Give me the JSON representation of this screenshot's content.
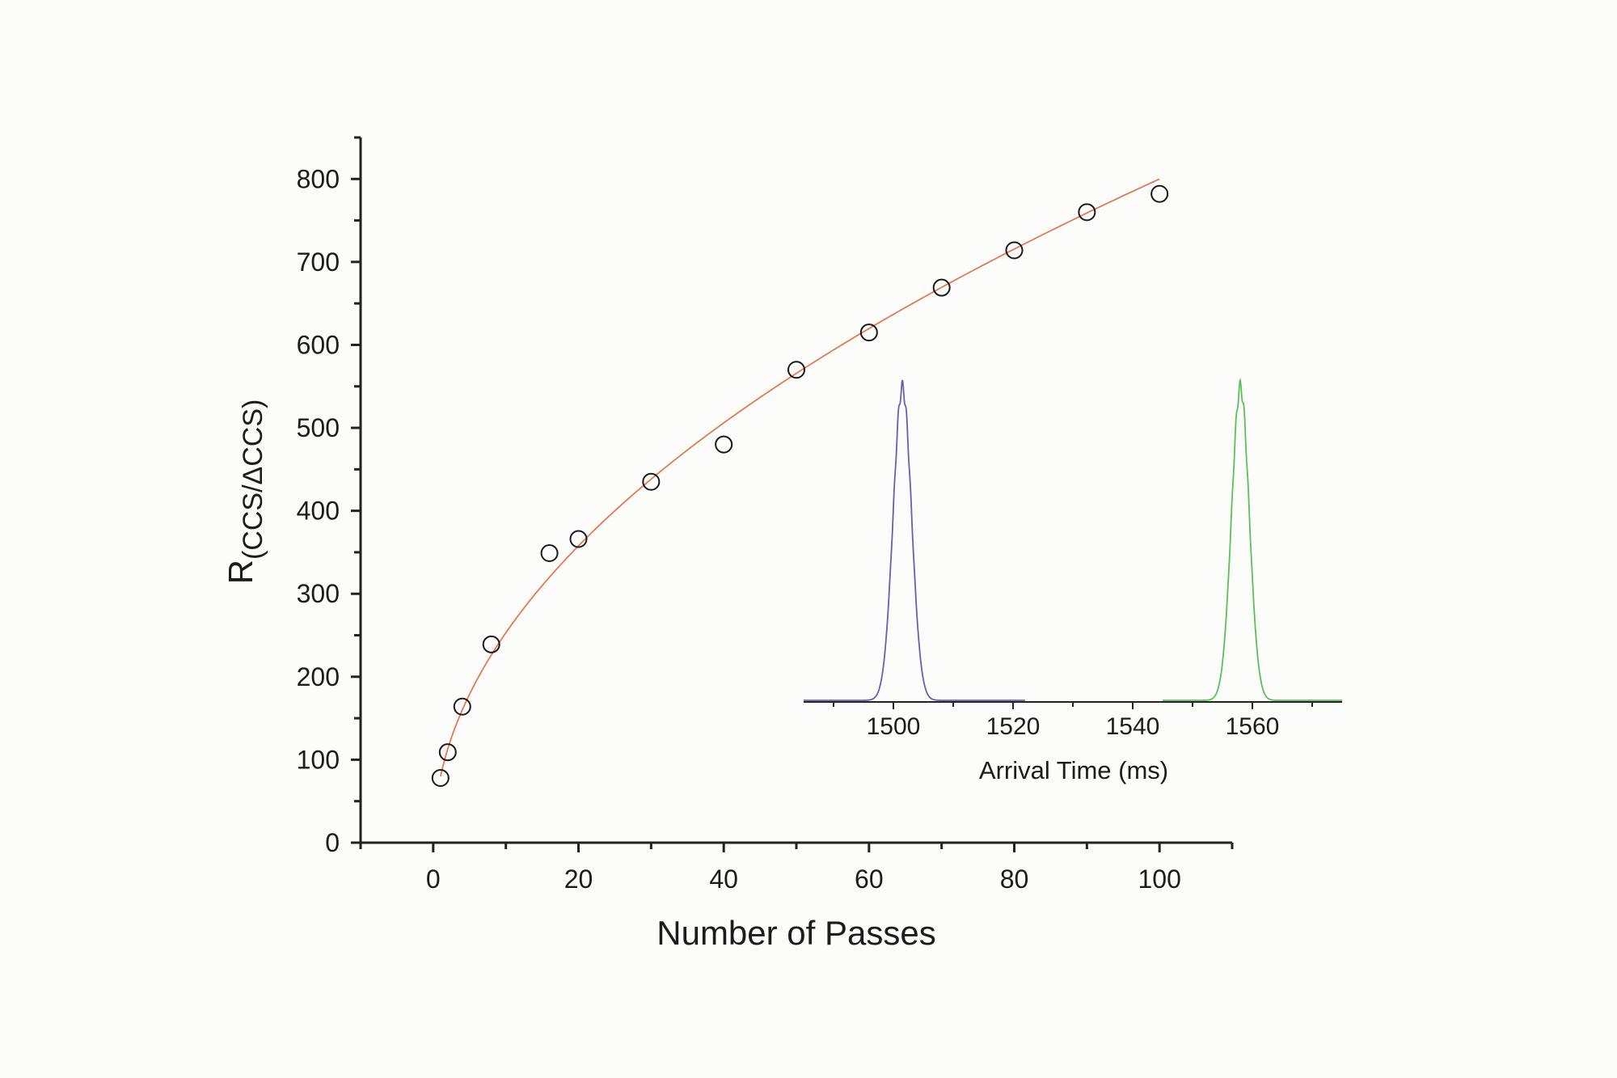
{
  "chart_data": {
    "type": "scatter",
    "xlabel": "Number of Passes",
    "ylabel_main": "R",
    "ylabel_subscript": "(CCS/ΔCCS)",
    "xlim": [
      -10,
      110
    ],
    "ylim": [
      0,
      850
    ],
    "x_ticks": [
      0,
      20,
      40,
      60,
      80,
      100
    ],
    "x_tick_labels": [
      "0",
      "20",
      "40",
      "60",
      "80",
      "100"
    ],
    "y_ticks": [
      0,
      100,
      200,
      300,
      400,
      500,
      600,
      700,
      800
    ],
    "y_tick_labels": [
      "0",
      "100",
      "200",
      "300",
      "400",
      "500",
      "600",
      "700",
      "800"
    ],
    "x_minor_step": 10,
    "y_minor_step": 50,
    "grid": false,
    "series": [
      {
        "kind": "markers",
        "marker": "open-circle",
        "color": "#1a1a1a",
        "x": [
          1,
          2,
          4,
          8,
          16,
          20,
          30,
          40,
          50,
          60,
          70,
          80,
          90,
          100
        ],
        "y": [
          78,
          109,
          164,
          239,
          349,
          366,
          435,
          480,
          570,
          615,
          669,
          714,
          760,
          782
        ]
      },
      {
        "kind": "fit-line",
        "color": "#e27a55",
        "model": "power",
        "coefficient": 80,
        "exponent": 0.5,
        "x_range": [
          1,
          100
        ]
      }
    ],
    "inset": {
      "type": "line",
      "xlabel": "Arrival Time (ms)",
      "xlim": [
        1485,
        1575
      ],
      "x_ticks": [
        1500,
        1520,
        1540,
        1560
      ],
      "x_tick_labels": [
        "1500",
        "1520",
        "1540",
        "1560"
      ],
      "x_minor_step": 10,
      "grid": false,
      "series": [
        {
          "color": "#6a5fad",
          "x_range": [
            1485,
            1522
          ],
          "peak_center": 1501.5,
          "peak_sigma": 1.5,
          "peak_height": 1.0,
          "baseline": 0.0
        },
        {
          "color": "#5cbf5c",
          "x_range": [
            1545,
            1575
          ],
          "peak_center": 1558.0,
          "peak_sigma": 1.45,
          "peak_height": 1.0,
          "baseline": 0.0
        }
      ]
    }
  }
}
